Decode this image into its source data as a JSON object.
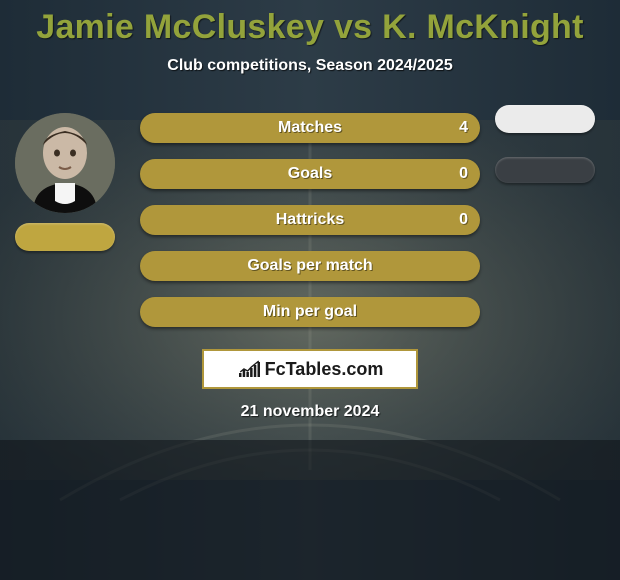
{
  "title": "Jamie McCluskey vs K. McKnight",
  "title_color": "#93a33b",
  "subtitle": "Club competitions, Season 2024/2025",
  "background": {
    "gradient_colors": [
      "#1e2c37",
      "#2d3c47",
      "#1e2c37"
    ],
    "field_tone": "#7f7e68"
  },
  "players": {
    "left": {
      "name": "Jamie McCluskey",
      "team_badge_color": "#bfa640"
    },
    "right": {
      "name": "K. McKnight",
      "team_badge_colors": [
        "#ebebeb",
        "#3a3f44"
      ]
    }
  },
  "stats": {
    "pill_color": "#b0973b",
    "rows": [
      {
        "label": "Matches",
        "left_value": "4"
      },
      {
        "label": "Goals",
        "left_value": "0"
      },
      {
        "label": "Hattricks",
        "left_value": "0"
      },
      {
        "label": "Goals per match",
        "left_value": ""
      },
      {
        "label": "Min per goal",
        "left_value": ""
      }
    ]
  },
  "footer": {
    "brand": "FcTables.com",
    "border_color": "#b0973b",
    "date": "21 november 2024"
  },
  "chart_icon": {
    "bars": [
      4,
      7,
      5,
      9,
      12,
      15
    ],
    "color": "#1a1a1a"
  }
}
